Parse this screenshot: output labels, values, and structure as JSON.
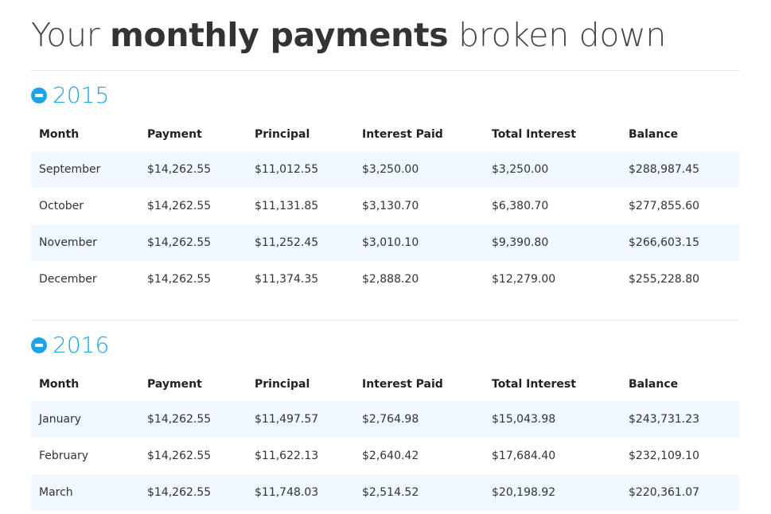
{
  "page": {
    "title_prefix": "Your ",
    "title_bold": "monthly payments",
    "title_suffix": " broken down"
  },
  "columns": [
    "Month",
    "Payment",
    "Principal",
    "Interest Paid",
    "Total Interest",
    "Balance"
  ],
  "years": [
    {
      "year": "2015",
      "rows": [
        [
          "September",
          "$14,262.55",
          "$11,012.55",
          "$3,250.00",
          "$3,250.00",
          "$288,987.45"
        ],
        [
          "October",
          "$14,262.55",
          "$11,131.85",
          "$3,130.70",
          "$6,380.70",
          "$277,855.60"
        ],
        [
          "November",
          "$14,262.55",
          "$11,252.45",
          "$3,010.10",
          "$9,390.80",
          "$266,603.15"
        ],
        [
          "December",
          "$14,262.55",
          "$11,374.35",
          "$2,888.20",
          "$12,279.00",
          "$255,228.80"
        ]
      ]
    },
    {
      "year": "2016",
      "rows": [
        [
          "January",
          "$14,262.55",
          "$11,497.57",
          "$2,764.98",
          "$15,043.98",
          "$243,731.23"
        ],
        [
          "February",
          "$14,262.55",
          "$11,622.13",
          "$2,640.42",
          "$17,684.40",
          "$232,109.10"
        ],
        [
          "March",
          "$14,262.55",
          "$11,748.03",
          "$2,514.52",
          "$20,198.92",
          "$220,361.07"
        ]
      ]
    }
  ],
  "icons": {
    "collapse": "minus-circle-icon"
  },
  "colors": {
    "accent": "#1ba5e8",
    "row_shade": "#eef8fe",
    "text": "#333333"
  }
}
